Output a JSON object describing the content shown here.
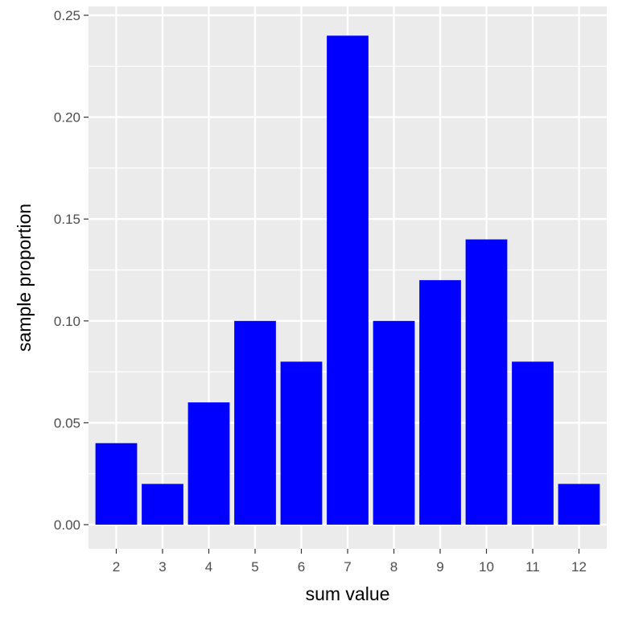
{
  "chart_data": {
    "type": "bar",
    "categories": [
      "2",
      "3",
      "4",
      "5",
      "6",
      "7",
      "8",
      "9",
      "10",
      "11",
      "12"
    ],
    "values": [
      0.04,
      0.02,
      0.06,
      0.1,
      0.08,
      0.24,
      0.1,
      0.12,
      0.14,
      0.08,
      0.02
    ],
    "xlabel": "sum value",
    "ylabel": "sample proportion",
    "ylim": [
      0,
      0.25
    ],
    "yticks": [
      "0.00",
      "0.05",
      "0.10",
      "0.15",
      "0.20",
      "0.25"
    ],
    "grid": true,
    "legend": "none",
    "colors": {
      "bar": "#0000ff",
      "panel": "#ebebeb",
      "grid": "#ffffff"
    }
  }
}
